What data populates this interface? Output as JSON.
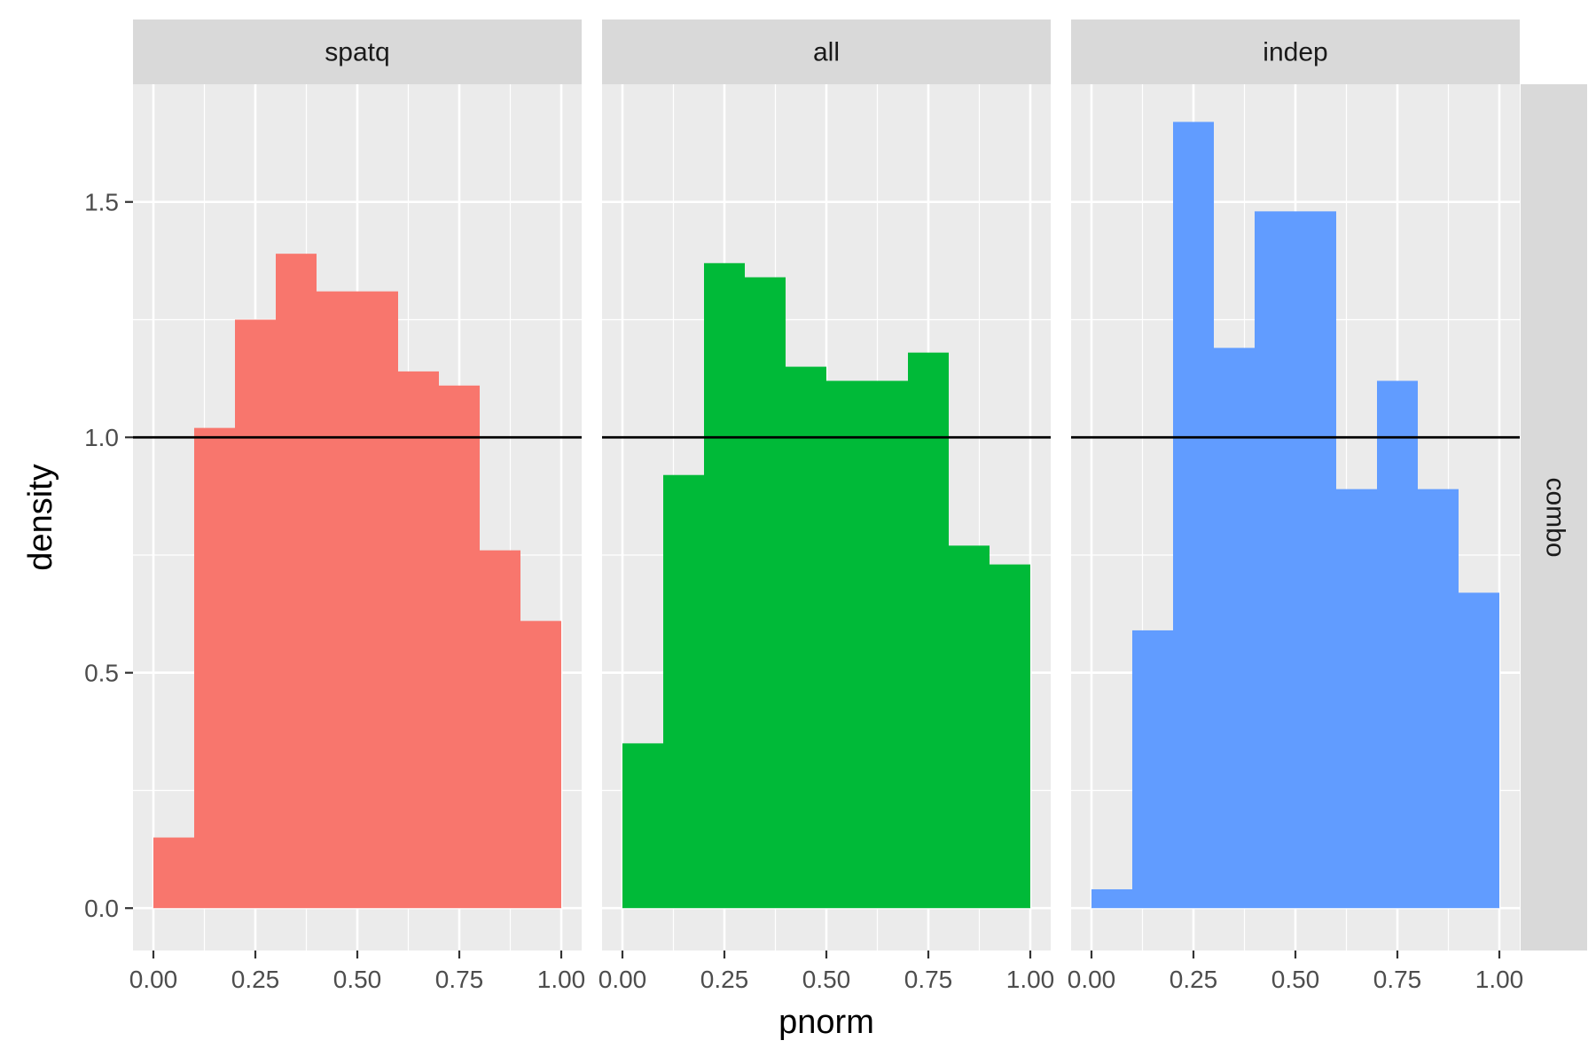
{
  "chart_data": {
    "type": "bar",
    "xlabel": "pnorm",
    "ylabel": "density",
    "xlim": [
      -0.05,
      1.05
    ],
    "ylim": [
      -0.09,
      1.75
    ],
    "x_ticks": [
      0.0,
      0.25,
      0.5,
      0.75,
      1.0
    ],
    "x_tick_labels": [
      "0.00",
      "0.25",
      "0.50",
      "0.75",
      "1.00"
    ],
    "y_ticks": [
      0.0,
      0.5,
      1.0,
      1.5
    ],
    "y_tick_labels": [
      "0.0",
      "0.5",
      "1.0",
      "1.5"
    ],
    "grid": true,
    "reference_line": {
      "y": 1.0,
      "color": "#000000"
    },
    "row_strip": "combo",
    "bin_edges": [
      0.0,
      0.1,
      0.2,
      0.3,
      0.4,
      0.5,
      0.6,
      0.7,
      0.8,
      0.9,
      1.0
    ],
    "panels": [
      {
        "name": "spatq",
        "color": "#F8766D",
        "values": [
          0.15,
          1.02,
          1.25,
          1.39,
          1.31,
          1.31,
          1.14,
          1.11,
          0.76,
          0.61
        ]
      },
      {
        "name": "all",
        "color": "#00BA38",
        "values": [
          0.35,
          0.92,
          1.37,
          1.34,
          1.15,
          1.12,
          1.12,
          1.18,
          0.77,
          0.73
        ]
      },
      {
        "name": "indep",
        "color": "#619CFF",
        "values": [
          0.04,
          0.59,
          1.67,
          1.19,
          1.48,
          1.48,
          0.89,
          1.12,
          0.89,
          0.67
        ]
      }
    ]
  }
}
